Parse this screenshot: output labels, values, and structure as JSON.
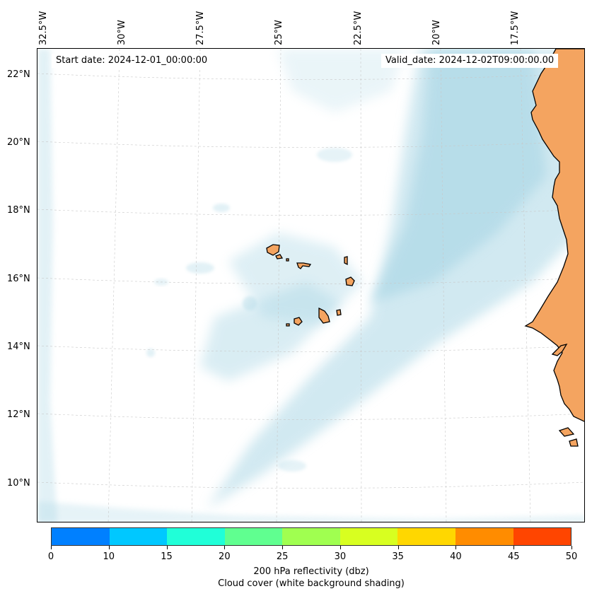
{
  "map": {
    "longitude_labels": [
      "32.5°W",
      "30°W",
      "27.5°W",
      "25°W",
      "22.5°W",
      "20°W",
      "17.5°W"
    ],
    "latitude_labels": [
      "22°N",
      "20°N",
      "18°N",
      "16°N",
      "14°N",
      "12°N",
      "10°N"
    ],
    "start_date": "Start date: 2024-12-01_00:00:00",
    "valid_date": "Valid_date: 2024-12-02T09:00:00.00",
    "land_color": "#f4a460",
    "cloud_color": "#add8e6",
    "coastline_color": "#000000",
    "features": [
      "cape-verde-islands",
      "west-africa-coast",
      "cloud-band"
    ]
  },
  "colorbar": {
    "ticks": [
      "0",
      "10",
      "15",
      "20",
      "25",
      "30",
      "35",
      "40",
      "45",
      "50"
    ],
    "colors": [
      "#0080ff",
      "#00c8ff",
      "#20ffd8",
      "#60ff90",
      "#a0ff50",
      "#d8ff20",
      "#ffd700",
      "#ff8c00",
      "#ff4500"
    ],
    "label_line1": "200 hPa reflectivity (dbz)",
    "label_line2": "Cloud cover (white background shading)"
  }
}
